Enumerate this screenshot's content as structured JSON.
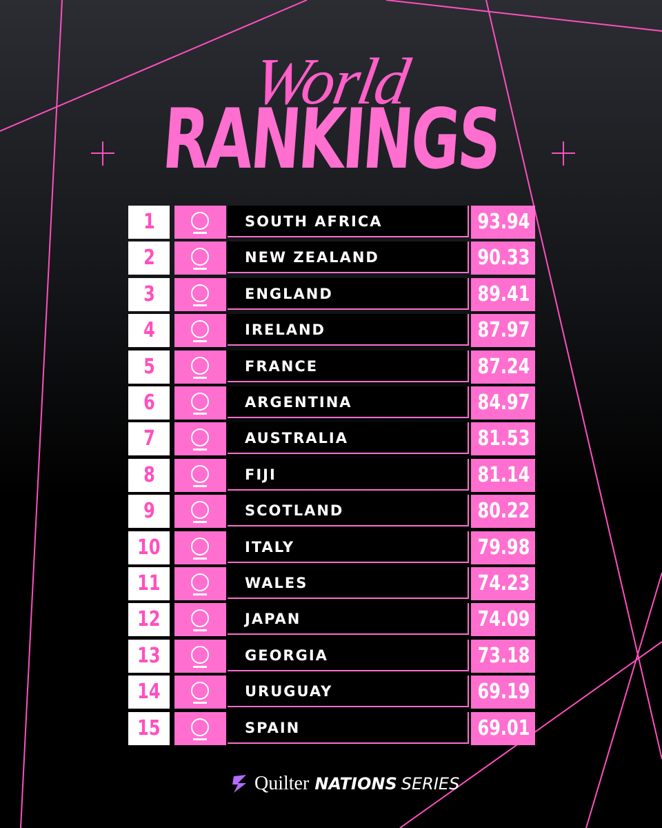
{
  "header": {
    "script_title": "World",
    "title": "RANKINGS"
  },
  "table": {
    "rows": [
      {
        "rank": "1",
        "team": "SOUTH AFRICA",
        "points": 93.94
      },
      {
        "rank": "2",
        "team": "NEW ZEALAND",
        "points": 90.33
      },
      {
        "rank": "3",
        "team": "ENGLAND",
        "points": 89.41
      },
      {
        "rank": "4",
        "team": "IRELAND",
        "points": 87.97
      },
      {
        "rank": "5",
        "team": "FRANCE",
        "points": 87.24
      },
      {
        "rank": "6",
        "team": "ARGENTINA",
        "points": 84.97
      },
      {
        "rank": "7",
        "team": "AUSTRALIA",
        "points": 81.53
      },
      {
        "rank": "8",
        "team": "FIJI",
        "points": 81.14
      },
      {
        "rank": "9",
        "team": "SCOTLAND",
        "points": 80.22
      },
      {
        "rank": "10",
        "team": "ITALY",
        "points": 79.98
      },
      {
        "rank": "11",
        "team": "WALES",
        "points": 74.23
      },
      {
        "rank": "12",
        "team": "JAPAN",
        "points": 74.09
      },
      {
        "rank": "13",
        "team": "GEORGIA",
        "points": 73.18
      },
      {
        "rank": "14",
        "team": "URUGUAY",
        "points": 69.19
      },
      {
        "rank": "15",
        "team": "SPAIN",
        "points": 69.01
      }
    ]
  },
  "footer": {
    "brand": "Quilter",
    "series_bold": "NATIONS",
    "series": "SERIES"
  }
}
